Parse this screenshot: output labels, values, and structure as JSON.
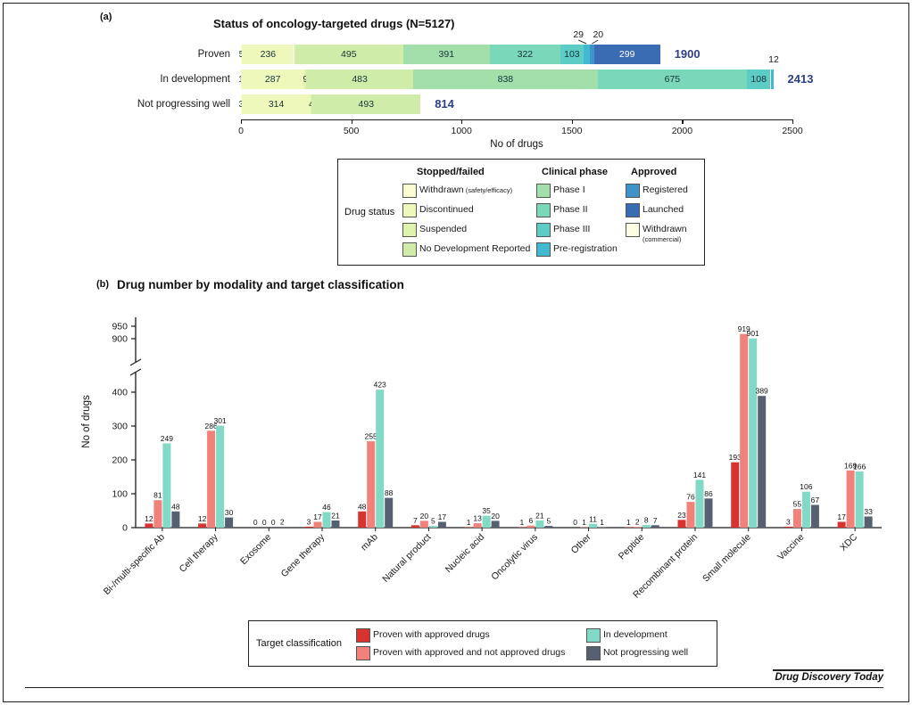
{
  "panel_a": {
    "tag": "(a)",
    "title": "Status of oncology-targeted drugs (N=5127)",
    "xlabel": "No of drugs",
    "legend": {
      "row_label": "Drug status",
      "groups": [
        {
          "header": "Stopped/failed",
          "items": [
            {
              "key": "withdrawn_se",
              "label": "Withdrawn",
              "note": "(safety/efficacy)",
              "note_inline": true
            },
            {
              "key": "discontinued",
              "label": "Discontinued"
            },
            {
              "key": "suspended",
              "label": "Suspended"
            },
            {
              "key": "no_dev",
              "label": "No Development Reported"
            }
          ]
        },
        {
          "header": "Clinical phase",
          "items": [
            {
              "key": "phase1",
              "label": "Phase I"
            },
            {
              "key": "phase2",
              "label": "Phase II"
            },
            {
              "key": "phase3",
              "label": "Phase III"
            },
            {
              "key": "prereg",
              "label": "Pre-registration"
            }
          ]
        },
        {
          "header": "Approved",
          "items": [
            {
              "key": "registered",
              "label": "Registered"
            },
            {
              "key": "launched",
              "label": "Launched"
            },
            {
              "key": "withdrawn_comm",
              "label": "Withdrawn",
              "note": "(commercial)",
              "note_inline": false
            }
          ]
        }
      ]
    }
  },
  "panel_b": {
    "tag": "(b)",
    "title": "Drug number by modality and target classification",
    "ylabel": "No of drugs",
    "legend_title": "Target classification"
  },
  "footer": {
    "journal": "Drug Discovery Today"
  },
  "colors": {
    "withdrawn_se": "#fbfccf",
    "discontinued": "#eef8bb",
    "suspended": "#dff3ad",
    "no_dev": "#cfeda9",
    "phase1": "#a2dfab",
    "phase2": "#7bd7ba",
    "phase3": "#5cccc5",
    "prereg": "#41b9d0",
    "registered": "#3f93c8",
    "launched": "#3a6cb4",
    "withdrawn_comm": "#fdfde4",
    "red": "#d7342f",
    "pink": "#f0827b",
    "teal": "#82d9c5",
    "dark": "#566070",
    "total": "#2b3e87"
  },
  "chart_data": [
    {
      "type": "bar",
      "subtype": "horizontal-stacked",
      "title": "Status of oncology-targeted drugs (N=5127)",
      "xlabel": "No of drugs",
      "xlim": [
        0,
        2500
      ],
      "x_ticks": [
        0,
        500,
        1000,
        1500,
        2000,
        2500
      ],
      "status_order": [
        "Withdrawn (safety/efficacy)",
        "Discontinued",
        "Suspended",
        "No Development Reported",
        "Phase I",
        "Phase II",
        "Phase III",
        "Pre-registration",
        "Registered",
        "Launched",
        "Withdrawn (commercial)"
      ],
      "rows": [
        {
          "category": "Proven",
          "total": 1900,
          "segments": [
            {
              "status": "Withdrawn (safety/efficacy)",
              "key": "withdrawn_se",
              "value": 5
            },
            {
              "status": "Discontinued",
              "key": "discontinued",
              "value": 236
            },
            {
              "status": "No Development Reported",
              "key": "no_dev",
              "value": 495
            },
            {
              "status": "Phase I",
              "key": "phase1",
              "value": 391
            },
            {
              "status": "Phase II",
              "key": "phase2",
              "value": 322
            },
            {
              "status": "Phase III",
              "key": "phase3",
              "value": 103
            },
            {
              "status": "Pre-registration",
              "key": "prereg",
              "value": 29,
              "label": "above",
              "leader": true,
              "dx": -9
            },
            {
              "status": "Registered",
              "key": "registered",
              "value": 20,
              "label": "above",
              "leader": true,
              "dx": 7
            },
            {
              "status": "Launched",
              "key": "launched",
              "value": 299
            }
          ]
        },
        {
          "category": "In development",
          "total": 2413,
          "segments": [
            {
              "status": "Withdrawn (safety/efficacy)",
              "key": "withdrawn_se",
              "value": 1
            },
            {
              "status": "Discontinued",
              "key": "discontinued",
              "value": 287
            },
            {
              "status": "Suspended",
              "key": "suspended",
              "value": 9
            },
            {
              "status": "No Development Reported",
              "key": "no_dev",
              "value": 483
            },
            {
              "status": "Phase I",
              "key": "phase1",
              "value": 838
            },
            {
              "status": "Phase II",
              "key": "phase2",
              "value": 675
            },
            {
              "status": "Phase III",
              "key": "phase3",
              "value": 108
            },
            {
              "status": "Pre-registration",
              "key": "prereg",
              "value": 12,
              "label": "above",
              "dx": 2
            }
          ]
        },
        {
          "category": "Not progressing well",
          "total": 814,
          "segments": [
            {
              "status": "Withdrawn (safety/efficacy)",
              "key": "withdrawn_se",
              "value": 3
            },
            {
              "status": "Discontinued",
              "key": "discontinued",
              "value": 314
            },
            {
              "status": "Suspended",
              "key": "suspended",
              "value": 4
            },
            {
              "status": "No Development Reported",
              "key": "no_dev",
              "value": 493
            }
          ]
        }
      ]
    },
    {
      "type": "bar",
      "subtype": "grouped-vertical",
      "title": "Drug number by modality and target classification",
      "ylabel": "No of drugs",
      "ylim": [
        0,
        950
      ],
      "y_ticks": [
        0,
        100,
        200,
        300,
        400,
        900,
        950
      ],
      "axis_break": [
        400,
        900
      ],
      "legend_title": "Target classification",
      "legend_position": "bottom",
      "grid": false,
      "categories": [
        "Bi-/multi-specific Ab",
        "Cell therapy",
        "Exosome",
        "Gene therapy",
        "mAb",
        "Natural product",
        "Nucleic acid",
        "Oncolytic virus",
        "Other",
        "Peptide",
        "Recombinant protein",
        "Small molecule",
        "Vaccine",
        "XDC"
      ],
      "series": [
        {
          "name": "Proven with approved drugs",
          "key": "red",
          "values": [
            12,
            12,
            0,
            3,
            48,
            7,
            1,
            1,
            0,
            1,
            23,
            193,
            3,
            17
          ]
        },
        {
          "name": "Proven with approved and not approved drugs",
          "key": "pink",
          "values": [
            81,
            286,
            0,
            17,
            255,
            20,
            13,
            6,
            1,
            2,
            76,
            919,
            55,
            169
          ]
        },
        {
          "name": "In development",
          "key": "teal",
          "values": [
            249,
            301,
            0,
            46,
            423,
            5,
            35,
            21,
            11,
            8,
            141,
            901,
            106,
            166
          ]
        },
        {
          "name": "Not progressing well",
          "key": "dark",
          "values": [
            48,
            30,
            2,
            21,
            88,
            17,
            20,
            5,
            1,
            7,
            86,
            389,
            67,
            33
          ]
        }
      ]
    }
  ]
}
